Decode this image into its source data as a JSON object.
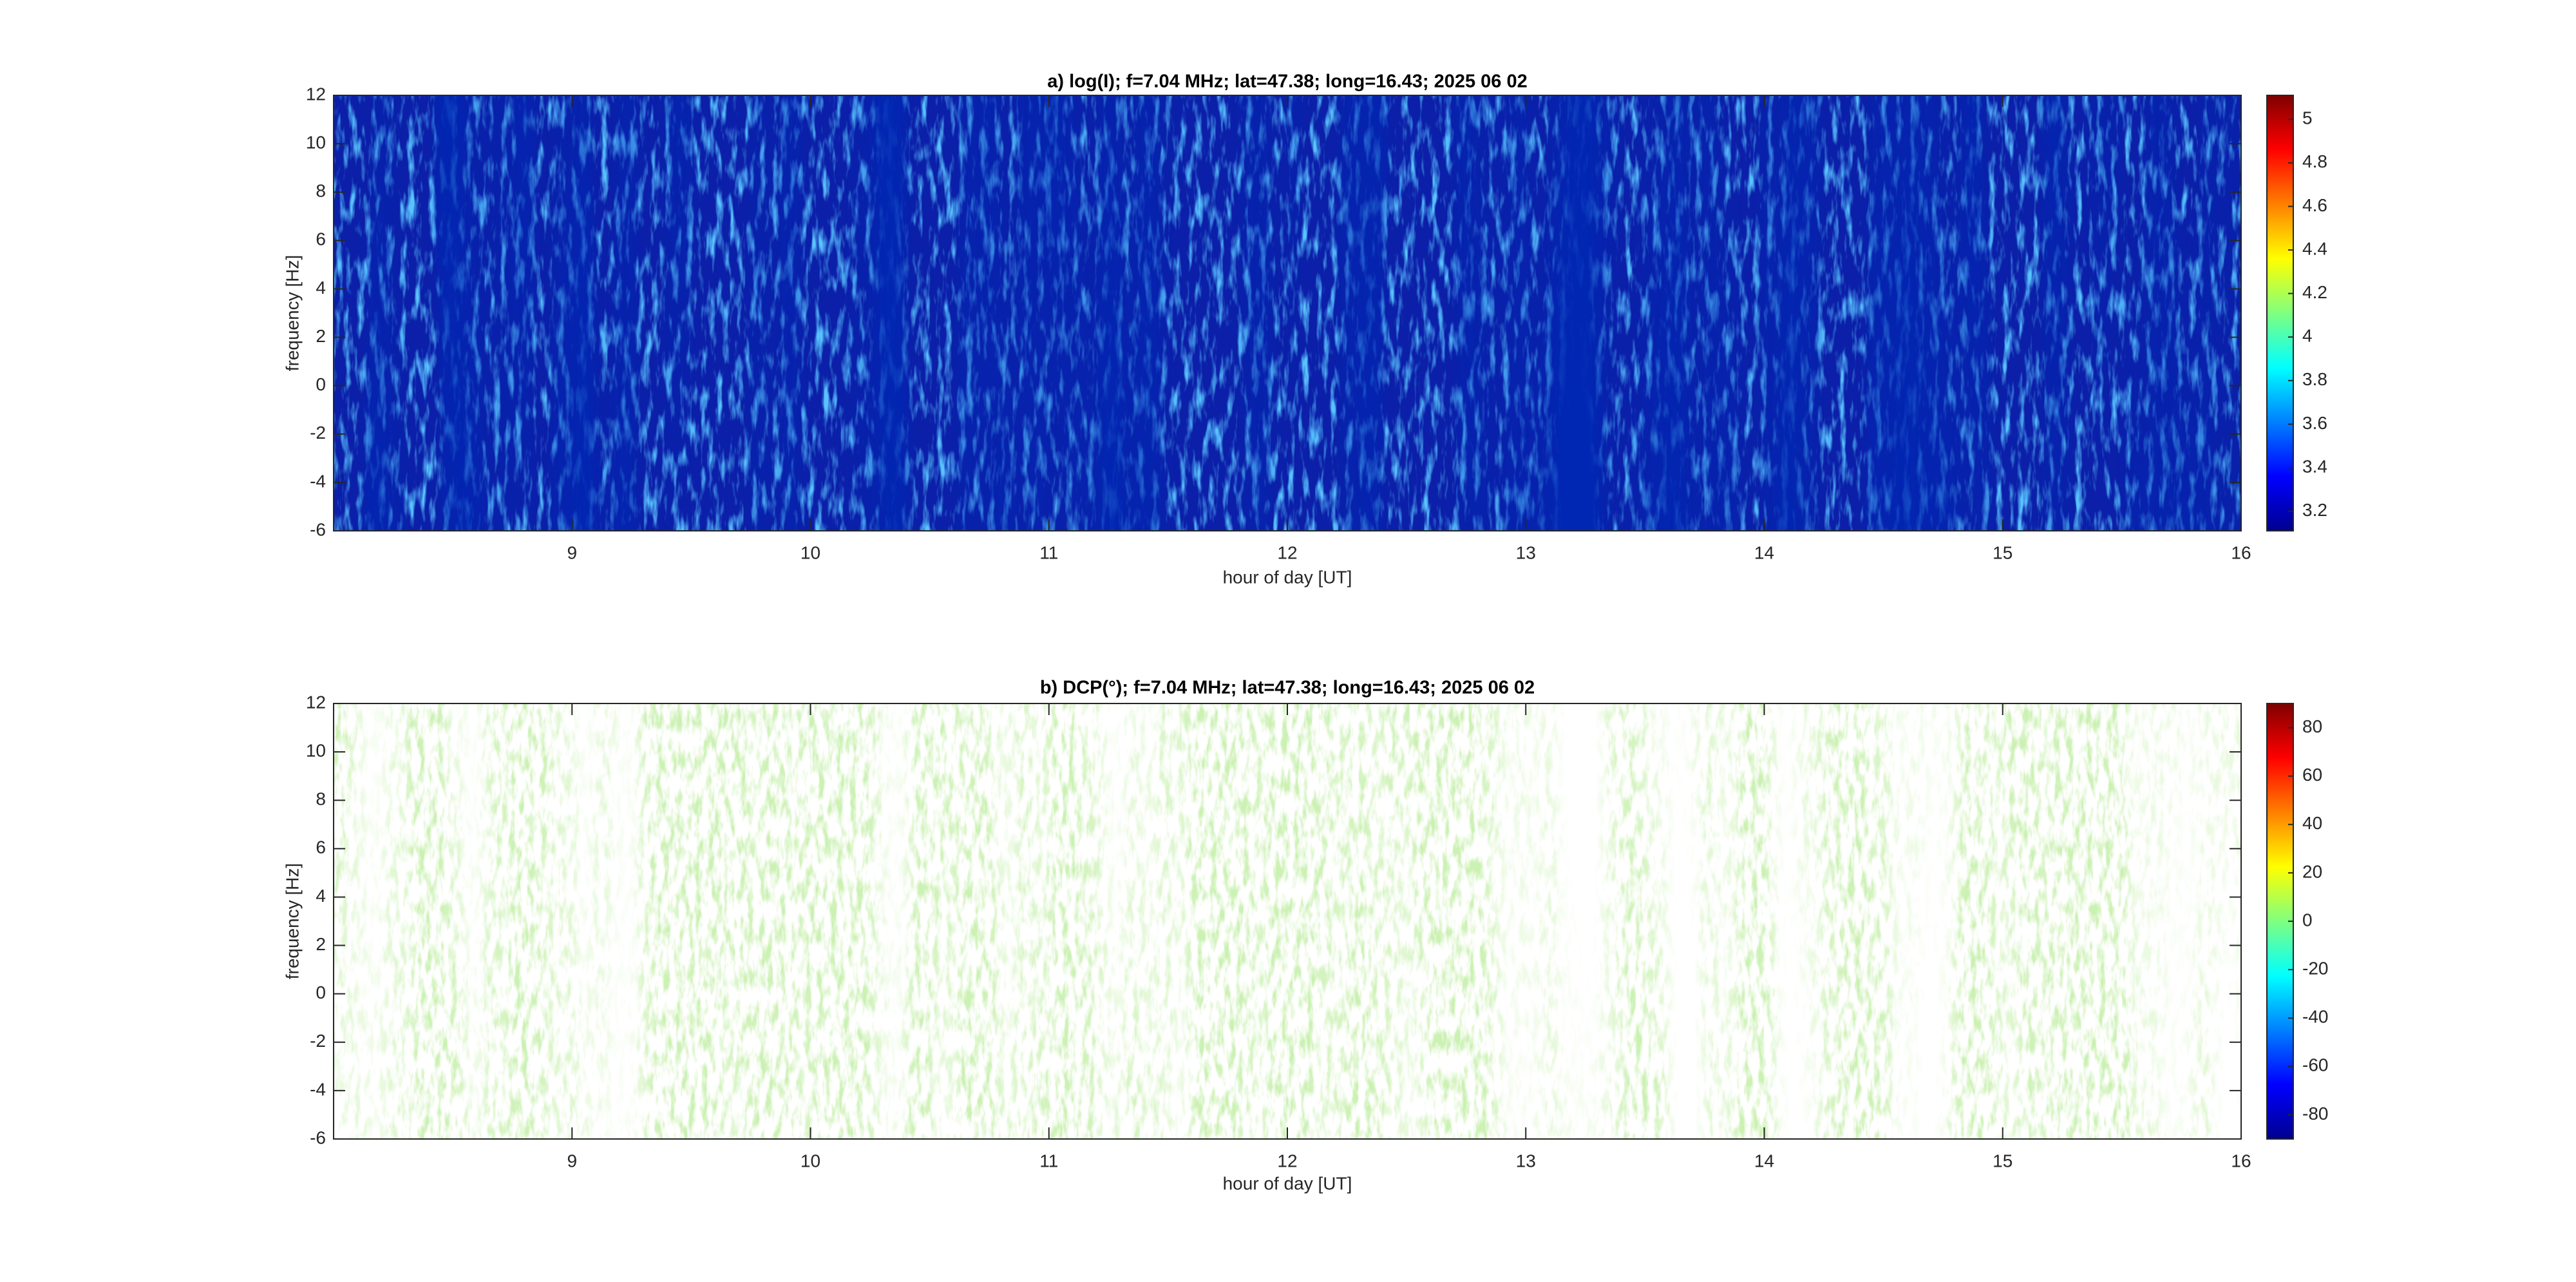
{
  "chart_data": [
    {
      "type": "heatmap",
      "title": "a) log(I); f=7.04 MHz;  lat=47.38; long=16.43; 2025 06 02",
      "x_label": "hour of day [UT]",
      "y_label": "frequency [Hz]",
      "xlim": [
        8,
        16
      ],
      "xticks": [
        9,
        10,
        11,
        12,
        13,
        14,
        15,
        16
      ],
      "ylim": [
        -6,
        12
      ],
      "yticks": [
        -6,
        -4,
        -2,
        0,
        2,
        4,
        6,
        8,
        10,
        12
      ],
      "colormap": "jet",
      "clim": [
        3.11,
        5.11
      ],
      "cticks": [
        3.2,
        3.4,
        3.6,
        3.8,
        4,
        4.2,
        4.4,
        4.6,
        4.8,
        5
      ]
    },
    {
      "type": "heatmap",
      "title": "b) DCP(°); f=7.04 MHz;  lat=47.38; long=16.43; 2025 06 02",
      "x_label": "hour of day [UT]",
      "y_label": "frequency [Hz]",
      "xlim": [
        8,
        16
      ],
      "xticks": [
        9,
        10,
        11,
        12,
        13,
        14,
        15,
        16
      ],
      "ylim": [
        -6,
        12
      ],
      "yticks": [
        -6,
        -4,
        -2,
        0,
        2,
        4,
        6,
        8,
        10,
        12
      ],
      "colormap": "jet",
      "clim": [
        -90,
        90
      ],
      "cticks": [
        -80,
        -60,
        -40,
        -20,
        0,
        20,
        40,
        60,
        80
      ]
    }
  ]
}
